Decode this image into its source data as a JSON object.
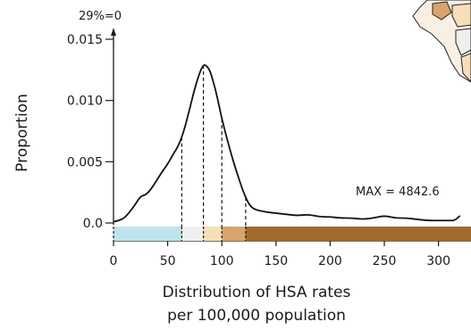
{
  "chart_data": {
    "type": "area",
    "title": "",
    "xlabel": [
      "Distribution of HSA rates",
      "per 100,000 population"
    ],
    "ylabel": "Proportion",
    "xlim": [
      0,
      330
    ],
    "ylim": [
      0,
      0.015
    ],
    "x_ticks": [
      0,
      50,
      100,
      150,
      200,
      250,
      300
    ],
    "y_ticks": [
      0.0,
      0.005,
      0.01,
      0.015
    ],
    "y_tick_labels": [
      "0.0",
      "0.005",
      "0.010",
      "0.015"
    ],
    "x_tick_labels": [
      "0",
      "50",
      "100",
      "150",
      "200",
      "250",
      "300"
    ],
    "top_annotation": "29%=0",
    "max_annotation": "MAX =  4842.6",
    "grid": false,
    "series": [
      {
        "x": [
          0,
          5,
          10,
          15,
          20,
          25,
          30,
          35,
          40,
          45,
          50,
          55,
          60,
          65,
          70,
          75,
          80,
          83,
          85,
          88,
          90,
          95,
          100,
          105,
          110,
          115,
          120,
          125,
          130,
          140,
          150,
          160,
          170,
          180,
          190,
          200,
          210,
          220,
          230,
          240,
          250,
          260,
          270,
          280,
          290,
          300,
          310,
          315,
          320
        ],
        "y": [
          0.0001,
          0.0002,
          0.0004,
          0.0009,
          0.0015,
          0.0022,
          0.0023,
          0.0028,
          0.0035,
          0.0042,
          0.0048,
          0.0056,
          0.0063,
          0.0075,
          0.0092,
          0.011,
          0.0124,
          0.0129,
          0.0129,
          0.0126,
          0.0122,
          0.0106,
          0.0085,
          0.0068,
          0.0052,
          0.0038,
          0.0025,
          0.0015,
          0.0011,
          0.0009,
          0.0008,
          0.0007,
          0.0006,
          0.0007,
          0.0005,
          0.0005,
          0.0004,
          0.0004,
          0.0003,
          0.0004,
          0.0006,
          0.0004,
          0.0004,
          0.0003,
          0.0002,
          0.0002,
          0.0002,
          0.0002,
          0.0006
        ]
      }
    ],
    "quantile_cuts": [
      63,
      83,
      100,
      122
    ],
    "bins": [
      {
        "from": 0,
        "to": 63,
        "color": "#bfe4ec"
      },
      {
        "from": 63,
        "to": 83,
        "color": "#efefef"
      },
      {
        "from": 83,
        "to": 100,
        "color": "#f7dfb8"
      },
      {
        "from": 100,
        "to": 122,
        "color": "#d7a46b"
      },
      {
        "from": 122,
        "to": 330,
        "color": "#a36a30"
      }
    ]
  }
}
